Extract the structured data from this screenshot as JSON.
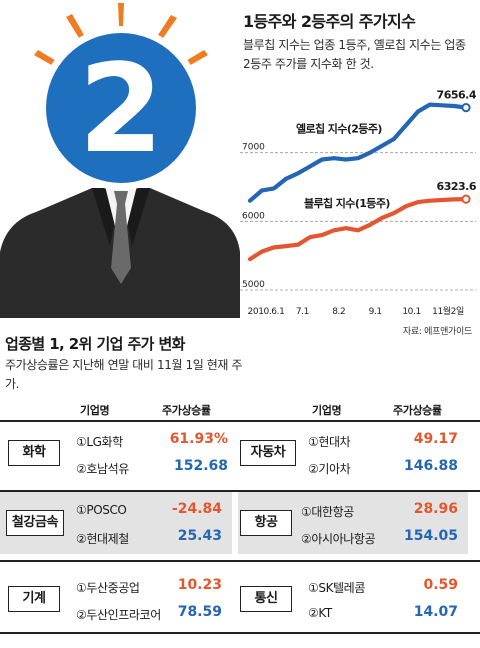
{
  "colors": {
    "series_bluechip": "#e4572e",
    "series_yellowchip": "#2366b5",
    "rate_first": "#e4572e",
    "rate_second": "#2366b5"
  },
  "illustration": {
    "badge_text": "2"
  },
  "chart_data": {
    "type": "line",
    "title": "1등주와 2등주의 주가지수",
    "subtitle": "블루칩 지수는 업종 1등주, 옐로칩 지수는 업종 2등주 주가를 지수화 한 것.",
    "x_tick_labels": [
      "2010.6.1",
      "7.1",
      "8.2",
      "9.1",
      "10.1",
      "11월2일"
    ],
    "y_ticks": [
      5000,
      6000,
      7000
    ],
    "ylim": [
      5000,
      8000
    ],
    "grid": "horizontal-dashed",
    "series": [
      {
        "name": "옐로칩 지수(2등주)",
        "end_label": "7656.4",
        "values": [
          6300,
          6450,
          6480,
          6620,
          6700,
          6800,
          6900,
          6920,
          6900,
          6920,
          7000,
          7100,
          7200,
          7400,
          7600,
          7700,
          7690,
          7680,
          7656.4
        ]
      },
      {
        "name": "블루칩 지수(1등주)",
        "end_label": "6323.6",
        "values": [
          5450,
          5560,
          5620,
          5640,
          5660,
          5770,
          5800,
          5870,
          5900,
          5870,
          5950,
          6050,
          6120,
          6220,
          6280,
          6300,
          6310,
          6320,
          6323.6
        ]
      }
    ],
    "source": "자료: 에프앤가이드"
  },
  "table": {
    "title": "업종별 1, 2위 기업 주가 변화",
    "note": "주가상승률은 지난해 연말 대비 11월 1일 현재 주가.",
    "headers": {
      "company": "기업명",
      "rate": "주가상승률"
    },
    "rows": [
      {
        "left": {
          "category": "화학",
          "first": {
            "name": "①LG화학",
            "rate": "61.93%"
          },
          "second": {
            "name": "②호남석유",
            "rate": "152.68"
          }
        },
        "right": {
          "category": "자동차",
          "first": {
            "name": "①현대차",
            "rate": "49.17"
          },
          "second": {
            "name": "②기아차",
            "rate": "146.88"
          }
        }
      },
      {
        "left": {
          "category": "철강금속",
          "first": {
            "name": "①POSCO",
            "rate": "-24.84"
          },
          "second": {
            "name": "②현대제철",
            "rate": "25.43"
          }
        },
        "right": {
          "category": "항공",
          "first": {
            "name": "①대한항공",
            "rate": "28.96"
          },
          "second": {
            "name": "②아시아나항공",
            "rate": "154.05"
          }
        }
      },
      {
        "left": {
          "category": "기계",
          "first": {
            "name": "①두산중공업",
            "rate": "10.23"
          },
          "second": {
            "name": "②두산인프라코어",
            "rate": "78.59"
          }
        },
        "right": {
          "category": "통신",
          "first": {
            "name": "①SK텔레콤",
            "rate": "0.59"
          },
          "second": {
            "name": "②KT",
            "rate": "14.07"
          }
        }
      }
    ]
  }
}
